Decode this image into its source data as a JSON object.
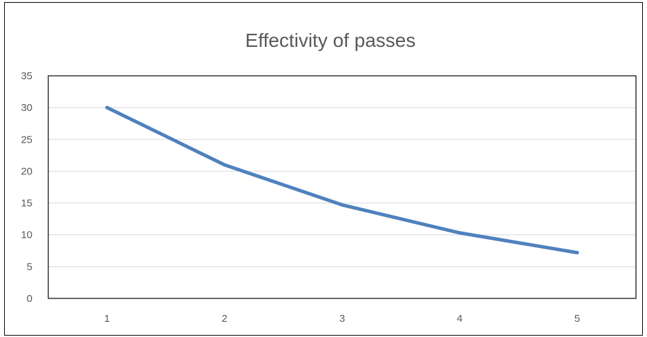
{
  "chart_data": {
    "type": "line",
    "title": "Effectivity of passes",
    "xlabel": "",
    "ylabel": "",
    "categories": [
      "1",
      "2",
      "3",
      "4",
      "5"
    ],
    "series": [
      {
        "values": [
          30,
          21,
          14.7,
          10.3,
          7.2
        ],
        "color": "#4f81bd"
      }
    ],
    "ylim": [
      0,
      35
    ],
    "yticks": [
      0,
      5,
      10,
      15,
      20,
      25,
      30,
      35
    ],
    "grid": true,
    "legend": "none",
    "colors": {
      "gridline": "#d9d9d9",
      "plot_border": "#000000",
      "text": "#595959"
    }
  }
}
